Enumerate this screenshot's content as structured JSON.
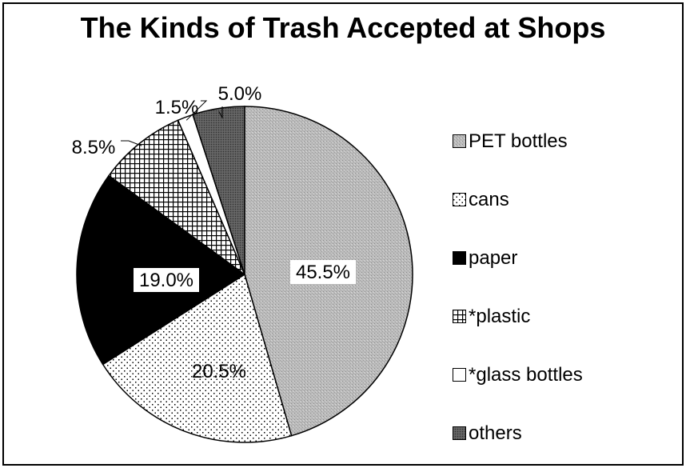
{
  "chart_data": {
    "type": "pie",
    "title": "The Kinds of Trash Accepted at Shops",
    "legend_position": "right",
    "slices": [
      {
        "name": "PET bottles",
        "value": 45.5,
        "label": "45.5%",
        "pattern": "pat-pet",
        "color": "#b3b3b3"
      },
      {
        "name": "cans",
        "value": 20.5,
        "label": "20.5%",
        "pattern": "pat-cans",
        "color": "#ffffff"
      },
      {
        "name": "paper",
        "value": 19.0,
        "label": "19.0%",
        "pattern": "pat-paper",
        "color": "#000000"
      },
      {
        "name": "*plastic",
        "value": 8.5,
        "label": "8.5%",
        "pattern": "pat-plastic",
        "color": "#ffffff"
      },
      {
        "name": "*glass bottles",
        "value": 1.5,
        "label": "1.5%",
        "pattern": "pat-glass",
        "color": "#ffffff"
      },
      {
        "name": "others",
        "value": 5.0,
        "label": "5.0%",
        "pattern": "pat-others",
        "color": "#555555"
      }
    ]
  }
}
